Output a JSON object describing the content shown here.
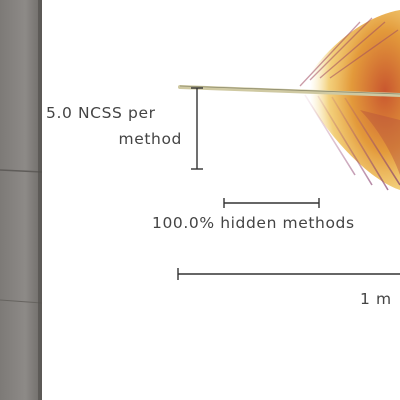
{
  "legend": {
    "ncss_line1": "5.0 NCSS per",
    "ncss_line2": "method",
    "hidden_methods": "100.0% hidden methods",
    "length": "1 m"
  },
  "colors": {
    "paper": "#ffffff",
    "wall": "#8a8784",
    "text": "#444444",
    "rule": "#333333",
    "feather_orange": "#e9a33a",
    "feather_red": "#b84a3a",
    "feather_purple": "#7d3a6b",
    "quill": "#c9c39a"
  }
}
